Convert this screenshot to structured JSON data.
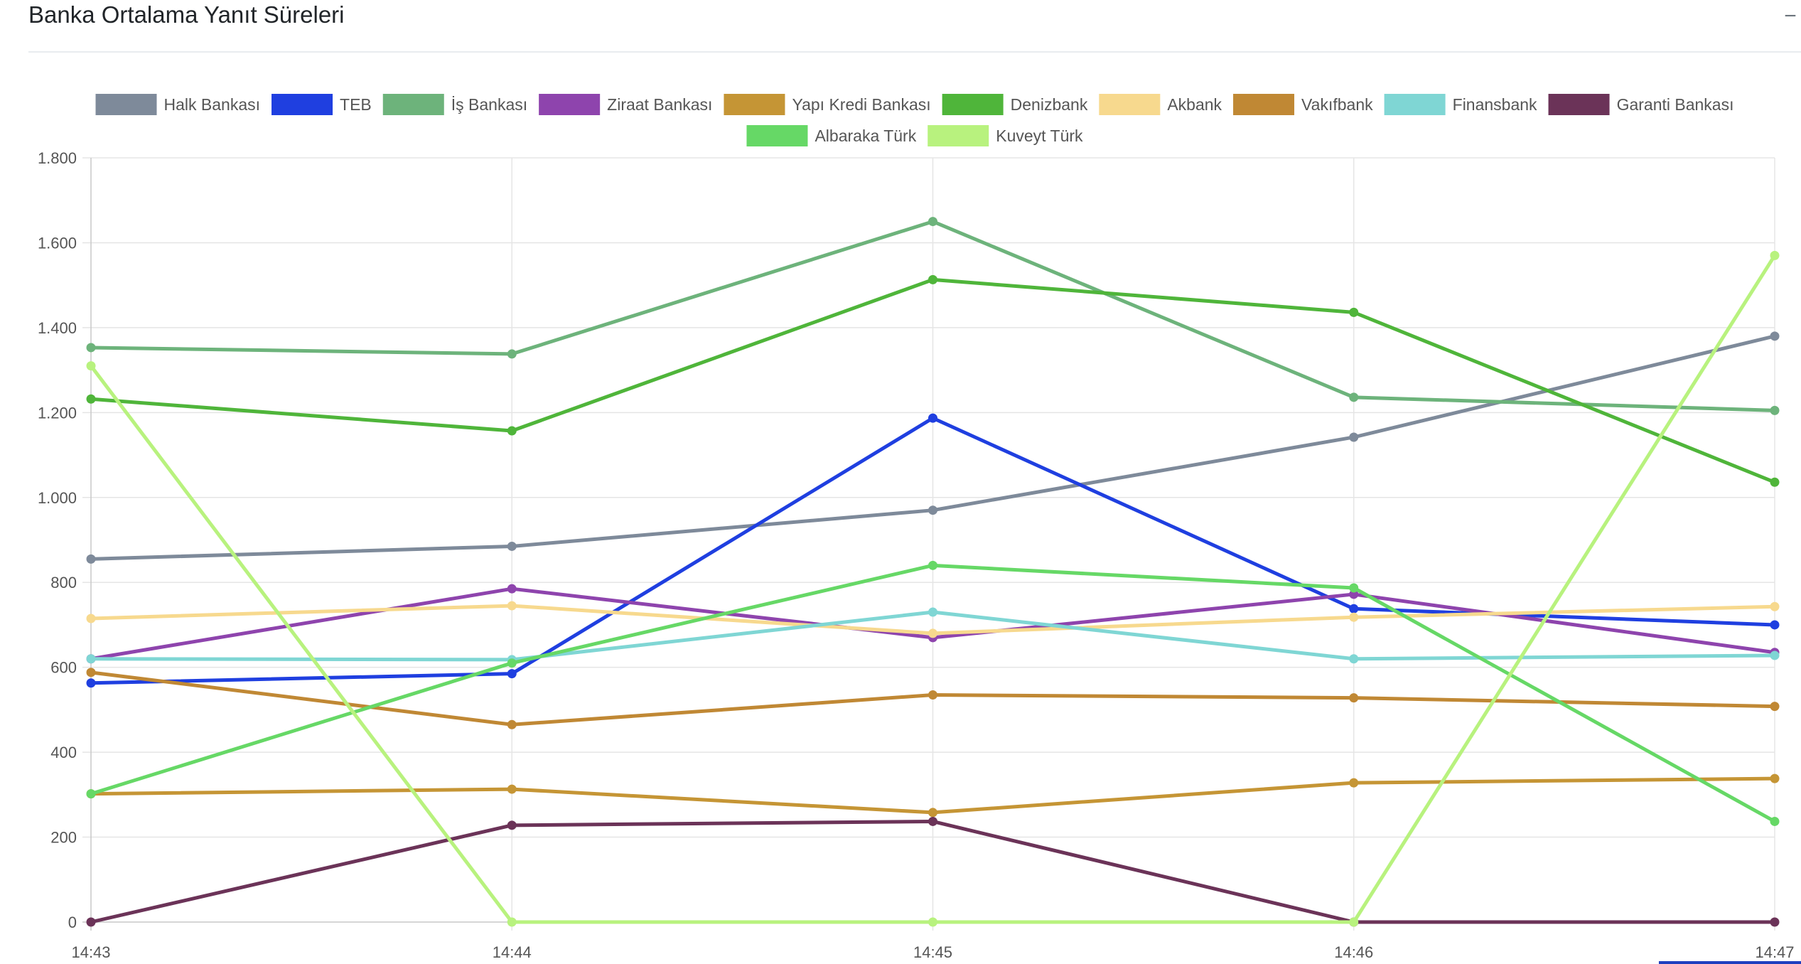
{
  "panel": {
    "title": "Banka Ortalama Yanıt Süreleri",
    "collapse_symbol": "−"
  },
  "chart_data": {
    "type": "line",
    "title": "",
    "xlabel": "",
    "ylabel": "",
    "x": [
      "14:43",
      "14:44",
      "14:45",
      "14:46",
      "14:47"
    ],
    "ylim": [
      0,
      1800
    ],
    "yticks": [
      0,
      200,
      400,
      600,
      800,
      1000,
      1200,
      1400,
      1600,
      1800
    ],
    "ytick_labels": [
      "0",
      "200",
      "400",
      "600",
      "800",
      "1.000",
      "1.200",
      "1.400",
      "1.600",
      "1.800"
    ],
    "grid": true,
    "legend_position": "top",
    "series": [
      {
        "name": "Halk Bankası",
        "color": "#7e8a9a",
        "values": [
          855,
          885,
          970,
          1142,
          1380
        ]
      },
      {
        "name": "TEB",
        "color": "#1f3fe0",
        "values": [
          563,
          585,
          1187,
          738,
          700
        ]
      },
      {
        "name": "İş Bankası",
        "color": "#6db37b",
        "values": [
          1353,
          1338,
          1650,
          1236,
          1205
        ]
      },
      {
        "name": "Ziraat Bankası",
        "color": "#8e44ad",
        "values": [
          620,
          785,
          670,
          772,
          635
        ]
      },
      {
        "name": "Yapı Kredi Bankası",
        "color": "#c59535",
        "values": [
          302,
          313,
          258,
          328,
          338
        ]
      },
      {
        "name": "Denizbank",
        "color": "#4fb53a",
        "values": [
          1232,
          1157,
          1513,
          1436,
          1036
        ]
      },
      {
        "name": "Akbank",
        "color": "#f7d98e",
        "values": [
          715,
          745,
          680,
          718,
          743
        ]
      },
      {
        "name": "Vakıfbank",
        "color": "#c08834",
        "values": [
          588,
          465,
          535,
          528,
          508
        ]
      },
      {
        "name": "Finansbank",
        "color": "#7fd6d4",
        "values": [
          620,
          618,
          730,
          620,
          628
        ]
      },
      {
        "name": "Garanti Bankası",
        "color": "#6b3358",
        "values": [
          0,
          228,
          237,
          0,
          0
        ]
      },
      {
        "name": "Albaraka Türk",
        "color": "#66d866",
        "values": [
          302,
          610,
          840,
          787,
          237
        ]
      },
      {
        "name": "Kuveyt Türk",
        "color": "#b8f27e",
        "values": [
          1310,
          0,
          0,
          0,
          1570
        ]
      }
    ]
  }
}
